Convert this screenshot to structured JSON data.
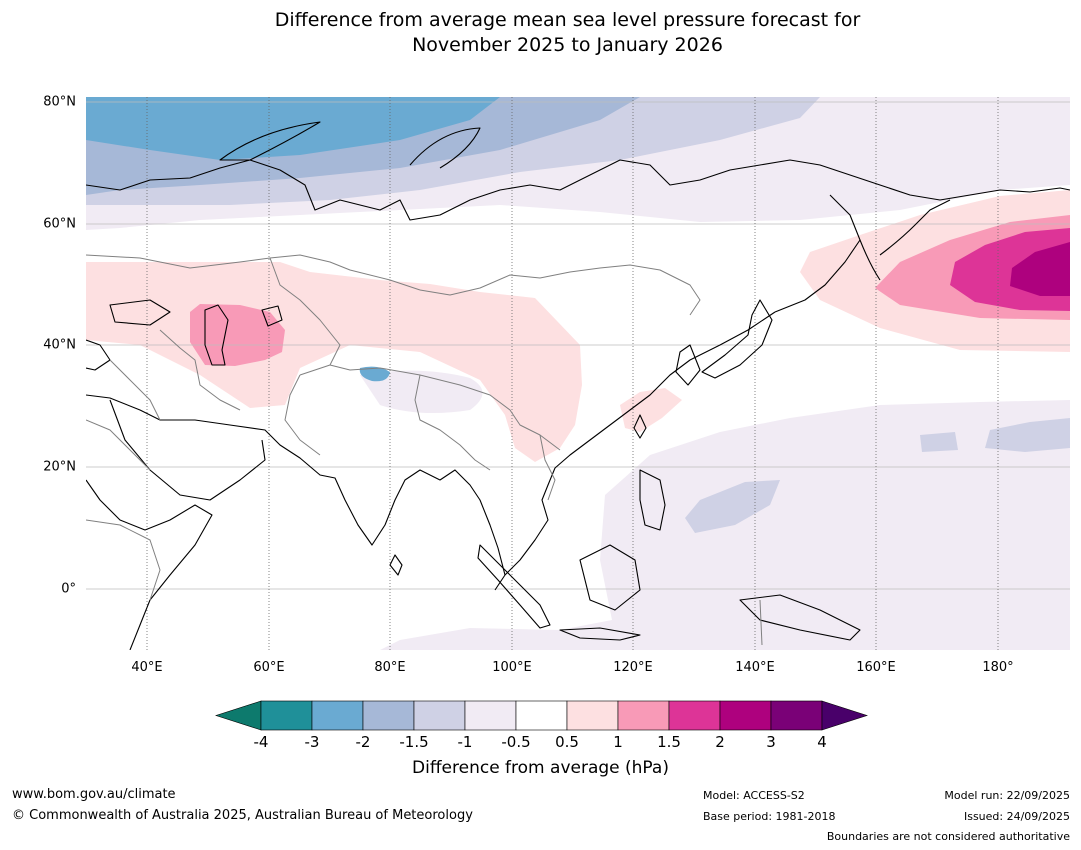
{
  "title": {
    "line1": "Difference from average mean sea level pressure forecast for",
    "line2": "November 2025 to January 2026"
  },
  "map": {
    "lat_labels": [
      "80°N",
      "60°N",
      "40°N",
      "20°N",
      "0°"
    ],
    "lon_labels": [
      "40°E",
      "60°E",
      "80°E",
      "100°E",
      "120°E",
      "140°E",
      "160°E",
      "180°"
    ]
  },
  "colorbar": {
    "ticks": [
      "-4",
      "-3",
      "-2",
      "-1.5",
      "-1",
      "-0.5",
      "0.5",
      "1",
      "1.5",
      "2",
      "3",
      "4"
    ],
    "colors": [
      "#0d7a6d",
      "#1f9099",
      "#6aaad2",
      "#a6b8d7",
      "#cfd1e5",
      "#f1ebf4",
      "#ffffff",
      "#fde0e1",
      "#f89ab7",
      "#dd3497",
      "#ae017e",
      "#7a0177",
      "#49006a"
    ],
    "label": "Difference from average (hPa)"
  },
  "footer": {
    "url": "www.bom.gov.au/climate",
    "copyright": "© Commonwealth of Australia 2025, Australian Bureau of Meteorology",
    "model": "Model: ACCESS-S2",
    "base_period": "Base period: 1981-2018",
    "model_run": "Model run: 22/09/2025",
    "issued": "Issued: 24/09/2025",
    "disclaimer": "Boundaries are not considered authoritative"
  }
}
